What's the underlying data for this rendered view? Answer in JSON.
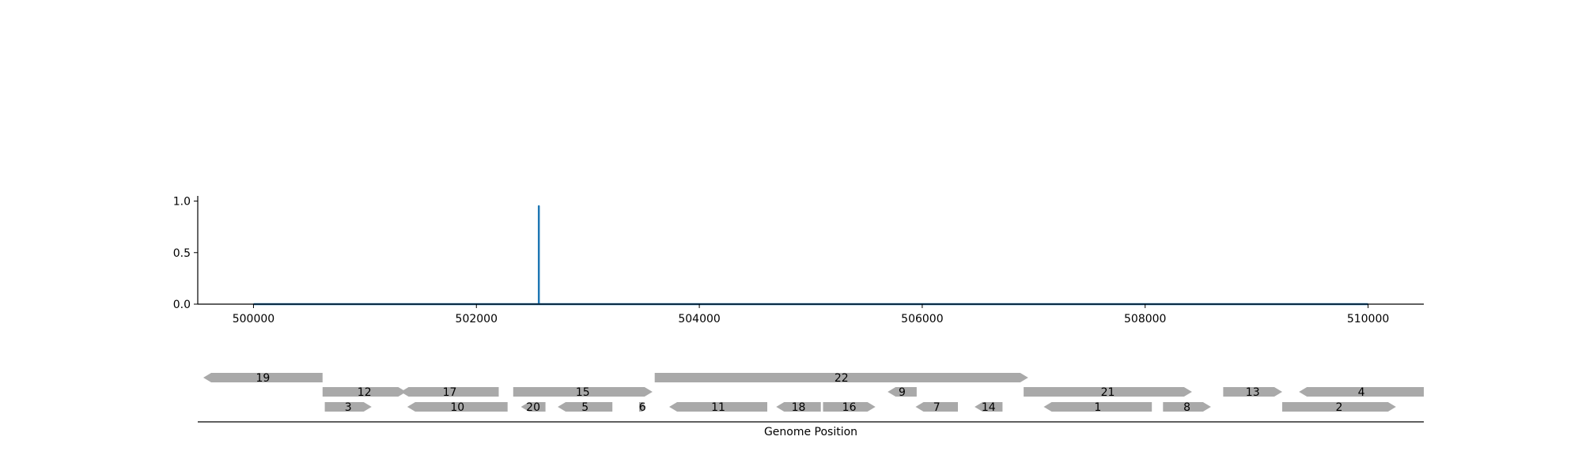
{
  "chart_data": [
    {
      "type": "line",
      "title": "",
      "xlabel": "",
      "ylabel": "",
      "xlim": [
        499500,
        510500
      ],
      "ylim": [
        0,
        1.05
      ],
      "xticks": [
        500000,
        502000,
        504000,
        506000,
        508000,
        510000
      ],
      "xtick_labels": [
        "500000",
        "502000",
        "504000",
        "506000",
        "508000",
        "510000"
      ],
      "yticks": [
        0.0,
        0.5,
        1.0
      ],
      "ytick_labels": [
        "0.0",
        "0.5",
        "1.0"
      ],
      "grid": false,
      "series": [
        {
          "color": "#1f77b4",
          "x": [
            500000,
            502560,
            502560,
            502560,
            510000
          ],
          "y": [
            0.0,
            0.0,
            0.95,
            0.0,
            0.0
          ]
        }
      ]
    },
    {
      "type": "gene_track",
      "xlabel": "Genome Position",
      "xlim": [
        499500,
        510500
      ],
      "feature_color": "#a9a9a9",
      "features": [
        {
          "label": "19",
          "start": 499550,
          "end": 500620,
          "strand": "-",
          "row": 1
        },
        {
          "label": "12",
          "start": 500620,
          "end": 501370,
          "strand": "+",
          "row": 2
        },
        {
          "label": "3",
          "start": 500640,
          "end": 501060,
          "strand": "+",
          "row": 3
        },
        {
          "label": "17",
          "start": 501320,
          "end": 502200,
          "strand": "-",
          "row": 2
        },
        {
          "label": "10",
          "start": 501380,
          "end": 502280,
          "strand": "-",
          "row": 3
        },
        {
          "label": "15",
          "start": 502330,
          "end": 503580,
          "strand": "+",
          "row": 2
        },
        {
          "label": "20",
          "start": 502400,
          "end": 502620,
          "strand": "-",
          "row": 3
        },
        {
          "label": "5",
          "start": 502730,
          "end": 503220,
          "strand": "-",
          "row": 3
        },
        {
          "label": "6",
          "start": 503460,
          "end": 503520,
          "strand": "+",
          "row": 3
        },
        {
          "label": "22",
          "start": 503600,
          "end": 506950,
          "strand": "+",
          "row": 1
        },
        {
          "label": "11",
          "start": 503730,
          "end": 504610,
          "strand": "-",
          "row": 3
        },
        {
          "label": "18",
          "start": 504690,
          "end": 505090,
          "strand": "-",
          "row": 3
        },
        {
          "label": "16",
          "start": 505110,
          "end": 505580,
          "strand": "+",
          "row": 3
        },
        {
          "label": "9",
          "start": 505690,
          "end": 505950,
          "strand": "-",
          "row": 2
        },
        {
          "label": "7",
          "start": 505940,
          "end": 506320,
          "strand": "-",
          "row": 3
        },
        {
          "label": "14",
          "start": 506470,
          "end": 506720,
          "strand": "-",
          "row": 3
        },
        {
          "label": "21",
          "start": 506910,
          "end": 508420,
          "strand": "+",
          "row": 2
        },
        {
          "label": "1",
          "start": 507090,
          "end": 508060,
          "strand": "-",
          "row": 3
        },
        {
          "label": "8",
          "start": 508160,
          "end": 508590,
          "strand": "+",
          "row": 3
        },
        {
          "label": "13",
          "start": 508700,
          "end": 509230,
          "strand": "+",
          "row": 2
        },
        {
          "label": "4",
          "start": 509380,
          "end": 510500,
          "strand": "-",
          "row": 2
        },
        {
          "label": "2",
          "start": 509230,
          "end": 510250,
          "strand": "+",
          "row": 3
        }
      ]
    }
  ]
}
